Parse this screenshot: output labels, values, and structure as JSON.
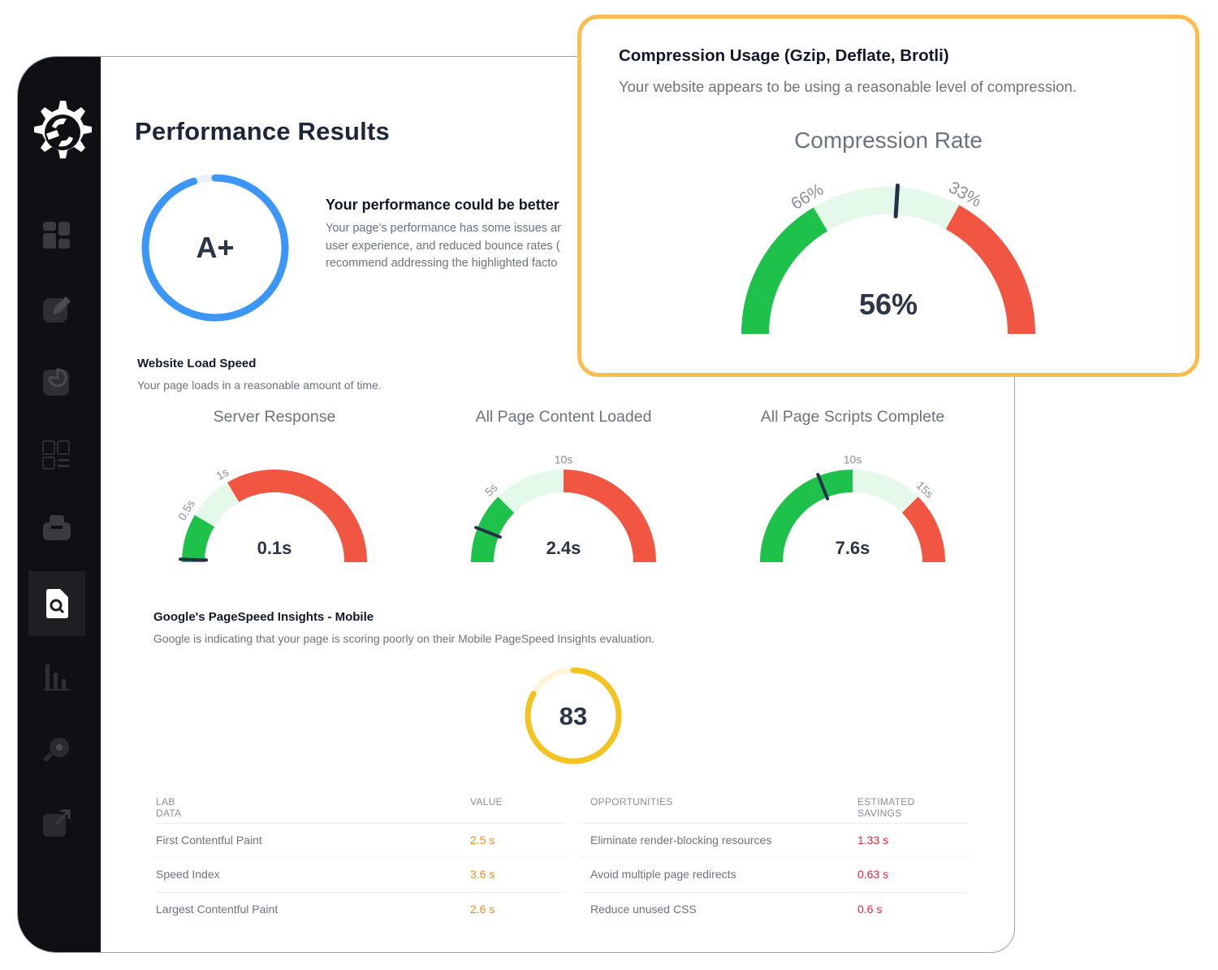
{
  "colors": {
    "green": "#1ec24a",
    "light_green": "#e5f9ea",
    "red": "#f05641",
    "blue": "#3b96f5",
    "yellow": "#f5c320",
    "callout_border": "#fbbd4d"
  },
  "sidebar": {
    "items": [
      {
        "icon": "dashboard-icon",
        "active": false
      },
      {
        "icon": "edit-icon",
        "active": false
      },
      {
        "icon": "report-icon",
        "active": false
      },
      {
        "icon": "layout-icon",
        "active": false
      },
      {
        "icon": "inbox-icon",
        "active": false
      },
      {
        "icon": "search-document-icon",
        "active": true
      },
      {
        "icon": "bar-chart-icon",
        "active": false
      },
      {
        "icon": "key-icon",
        "active": false
      },
      {
        "icon": "external-link-icon",
        "active": false
      }
    ]
  },
  "page": {
    "title": "Performance Results"
  },
  "score": {
    "grade": "A+",
    "fill": 0.95
  },
  "performance": {
    "heading": "Your performance could be better",
    "lines": [
      "Your page's performance has some issues ar",
      "user experience, and reduced bounce rates (",
      "recommend addressing the highlighted facto"
    ]
  },
  "load_speed": {
    "heading": "Website Load Speed",
    "description": "Your page loads in a reasonable amount of time.",
    "gauges": [
      {
        "title": "Server Response",
        "value": "0.1s",
        "labels": [
          "0.5s",
          "1s"
        ],
        "segments": [
          0.17,
          0.33
        ],
        "needle": 0.01
      },
      {
        "title": "All Page Content Loaded",
        "value": "2.4s",
        "labels": [
          "5s",
          "10s"
        ],
        "segments": [
          0.25,
          0.5
        ],
        "needle": 0.12
      },
      {
        "title": "All Page Scripts Complete",
        "value": "7.6s",
        "labels": [
          "10s",
          "15s"
        ],
        "segments": [
          0.5,
          0.75
        ],
        "needle": 0.38
      }
    ]
  },
  "pagespeed": {
    "heading": "Google's PageSpeed Insights - Mobile",
    "description": "Google is indicating that your page is scoring poorly on their Mobile PageSpeed Insights evaluation.",
    "score": "83",
    "score_fraction": 0.83
  },
  "lab_data": {
    "headers": [
      "LAB DATA",
      "VALUE"
    ],
    "rows": [
      [
        "First Contentful Paint",
        "2.5 s"
      ],
      [
        "Speed Index",
        "3.6 s"
      ],
      [
        "Largest Contentful Paint",
        "2.6 s"
      ]
    ]
  },
  "opportunities": {
    "headers": [
      "OPPORTUNITIES",
      "ESTIMATED SAVINGS"
    ],
    "rows": [
      [
        "Eliminate render-blocking resources",
        "1.33 s"
      ],
      [
        "Avoid multiple page redirects",
        "0.63 s"
      ],
      [
        "Reduce unused CSS",
        "0.6 s"
      ]
    ]
  },
  "compression": {
    "heading": "Compression Usage (Gzip, Deflate, Brotli)",
    "description": "Your website appears to be using a reasonable level of compression.",
    "rate_title": "Compression Rate",
    "value": "56%",
    "labels": [
      "66%",
      "33%"
    ],
    "segments": [
      0.33,
      0.66
    ],
    "needle": 0.52
  }
}
